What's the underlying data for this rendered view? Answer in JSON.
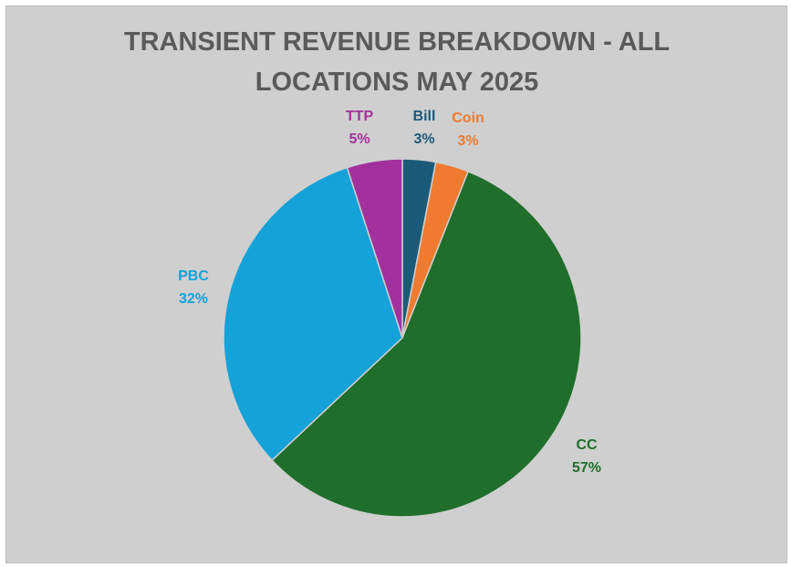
{
  "chart_data": {
    "type": "pie",
    "title": "TRANSIENT REVENUE BREAKDOWN - ALL LOCATIONS MAY 2025",
    "categories": [
      "Bill",
      "Coin",
      "CC",
      "PBC",
      "TTP"
    ],
    "values": [
      3,
      3,
      57,
      32,
      5
    ],
    "value_labels": [
      "3%",
      "3%",
      "57%",
      "32%",
      "5%"
    ],
    "colors": [
      "#1b5a78",
      "#ee7b30",
      "#1f6e2b",
      "#14a2d8",
      "#a2319d"
    ]
  }
}
